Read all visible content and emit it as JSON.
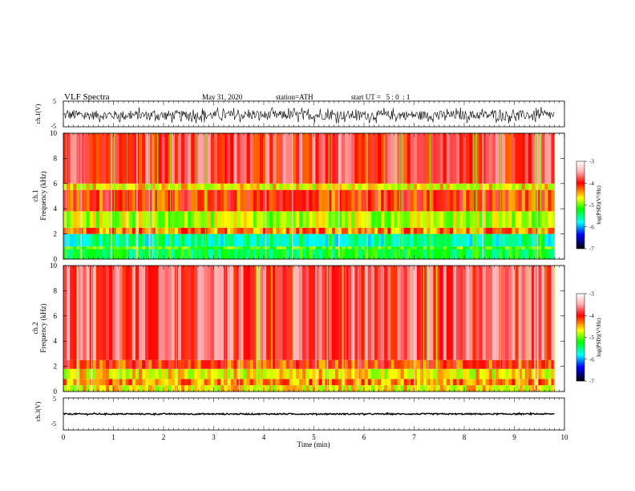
{
  "header": {
    "title": "VLF Spectra",
    "date": "May 31, 2020",
    "station": "station=ATH",
    "start": "start UT =   5 : 0  : 1"
  },
  "panels": {
    "ch1_wave": {
      "ylabel": "ch.1(V)",
      "yticks": [
        "5",
        "-5"
      ]
    },
    "ch1_spec": {
      "ylabel_ch": "ch.1",
      "ylabel_freq": "Frequency (kHz)",
      "yticks": [
        "10",
        "8",
        "6",
        "4",
        "2",
        "0"
      ]
    },
    "ch2_spec": {
      "ylabel_ch": "ch.2",
      "ylabel_freq": "Frequency (kHz)",
      "yticks": [
        "10",
        "8",
        "6",
        "4",
        "2",
        "0"
      ]
    },
    "ch3_wave": {
      "ylabel": "ch.3(V)",
      "yticks": [
        "5",
        "-5"
      ]
    }
  },
  "xaxis": {
    "label": "Time (min)",
    "ticks": [
      "0",
      "1",
      "2",
      "3",
      "4",
      "5",
      "6",
      "7",
      "8",
      "9",
      "10"
    ]
  },
  "colorbar": {
    "label": "log(PSD)(V²/Hz)",
    "ticks": [
      "-3",
      "-4",
      "-5",
      "-6",
      "-7"
    ],
    "colors": [
      "#ffffff",
      "#ff0000",
      "#ffff00",
      "#00ff00",
      "#00ffff",
      "#0000ff",
      "#000000"
    ]
  },
  "chart_data": [
    {
      "type": "line",
      "title": "VLF Spectra",
      "ylabel": "ch.1(V)",
      "xlabel": "Time (min)",
      "xlim": [
        0,
        10
      ],
      "ylim": [
        -5,
        5
      ],
      "data_extent_min": 9.8,
      "description_level": {
        "mean": -0.5,
        "amplitude": 1.8
      }
    },
    {
      "type": "heatmap",
      "ylabel": "ch.1 Frequency (kHz)",
      "xlim": [
        0,
        10
      ],
      "ylim": [
        0,
        10
      ],
      "colorbar_range": [
        -7,
        -3
      ],
      "bands_kHz": [
        {
          "range": [
            0,
            0.8
          ],
          "log_psd": -5.3
        },
        {
          "range": [
            0.8,
            1.0
          ],
          "log_psd": -5.0
        },
        {
          "range": [
            1.0,
            2.0
          ],
          "log_psd": -5.6
        },
        {
          "range": [
            2.0,
            2.5
          ],
          "log_psd": -4.3
        },
        {
          "range": [
            2.5,
            3.8
          ],
          "log_psd": -4.8
        },
        {
          "range": [
            3.8,
            5.5
          ],
          "log_psd": -4.1
        },
        {
          "range": [
            5.5,
            6.0
          ],
          "log_psd": -4.6
        },
        {
          "range": [
            6.0,
            10.0
          ],
          "log_psd": -3.9
        }
      ]
    },
    {
      "type": "heatmap",
      "ylabel": "ch.2 Frequency (kHz)",
      "xlim": [
        0,
        10
      ],
      "ylim": [
        0,
        10
      ],
      "colorbar_range": [
        -7,
        -3
      ],
      "bands_kHz": [
        {
          "range": [
            0,
            0.5
          ],
          "log_psd": -4.6
        },
        {
          "range": [
            0.5,
            1.0
          ],
          "log_psd": -4.3
        },
        {
          "range": [
            1.0,
            1.8
          ],
          "log_psd": -4.6
        },
        {
          "range": [
            1.8,
            2.5
          ],
          "log_psd": -4.1
        },
        {
          "range": [
            2.5,
            10.0
          ],
          "log_psd": -3.8
        }
      ]
    },
    {
      "type": "line",
      "ylabel": "ch.3(V)",
      "xlabel": "Time (min)",
      "xlim": [
        0,
        10
      ],
      "ylim": [
        -5,
        5
      ],
      "data_extent_min": 9.8,
      "description_level": {
        "mean": 0.0,
        "amplitude": 0.2
      }
    }
  ]
}
